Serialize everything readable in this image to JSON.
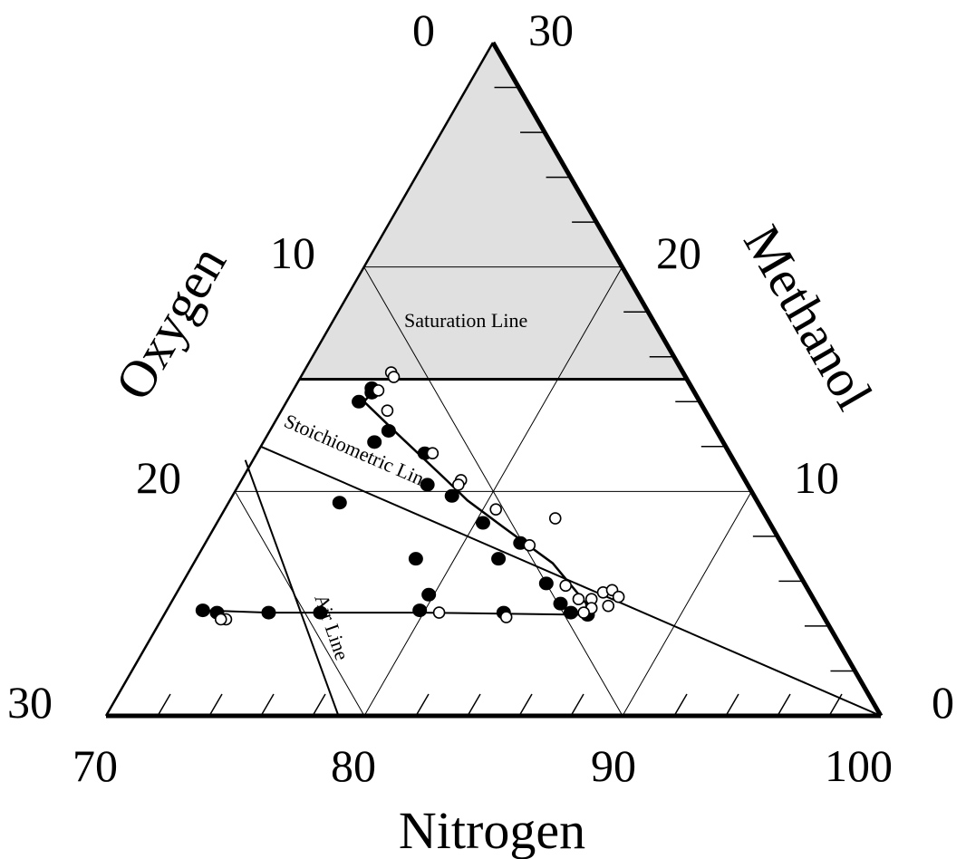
{
  "diagram": {
    "type": "ternary",
    "axes": {
      "oxygen": {
        "title": "Oxygen",
        "range": [
          0,
          30
        ],
        "tick_labels": [
          "0",
          "10",
          "20",
          "30"
        ]
      },
      "methanol": {
        "title": "Methanol",
        "range": [
          0,
          30
        ],
        "tick_labels": [
          "30",
          "20",
          "10",
          "0"
        ]
      },
      "nitrogen": {
        "title": "Nitrogen",
        "range": [
          70,
          100
        ],
        "tick_labels": [
          "70",
          "80",
          "90",
          "100"
        ]
      }
    },
    "line_labels": {
      "saturation": "Saturation Line",
      "stoichiometric": "Stoichiometric Line",
      "air": "Air Line"
    },
    "colors": {
      "shaded_region": "#e0e0e0",
      "lines": "#000000"
    }
  },
  "chart_data": {
    "type": "scatter",
    "coordinates": "ternary (mole %): methanol, oxygen, nitrogen",
    "saturation_methanol": 15,
    "series": [
      {
        "marker": "filled",
        "points": [
          {
            "methanol": 14.6,
            "oxygen": 12.4,
            "nitrogen": 73.0
          },
          {
            "methanol": 14.4,
            "oxygen": 12.5,
            "nitrogen": 73.1
          },
          {
            "methanol": 14.0,
            "oxygen": 13.2,
            "nitrogen": 72.8
          },
          {
            "methanol": 12.7,
            "oxygen": 12.7,
            "nitrogen": 74.6
          },
          {
            "methanol": 12.2,
            "oxygen": 13.5,
            "nitrogen": 74.3
          },
          {
            "methanol": 11.7,
            "oxygen": 11.8,
            "nitrogen": 76.5
          },
          {
            "methanol": 10.3,
            "oxygen": 12.4,
            "nitrogen": 77.3
          },
          {
            "methanol": 9.8,
            "oxygen": 11.7,
            "nitrogen": 78.5
          },
          {
            "methanol": 8.6,
            "oxygen": 11.1,
            "nitrogen": 80.3
          },
          {
            "methanol": 7.0,
            "oxygen": 11.3,
            "nitrogen": 81.7
          },
          {
            "methanol": 7.7,
            "oxygen": 10.1,
            "nitrogen": 82.2
          },
          {
            "methanol": 5.9,
            "oxygen": 10.0,
            "nitrogen": 84.1
          },
          {
            "methanol": 5.0,
            "oxygen": 9.9,
            "nitrogen": 85.1
          },
          {
            "methanol": 4.6,
            "oxygen": 9.7,
            "nitrogen": 85.7
          },
          {
            "methanol": 4.5,
            "oxygen": 9.1,
            "nitrogen": 86.4
          },
          {
            "methanol": 4.7,
            "oxygen": 23.9,
            "nitrogen": 71.4
          },
          {
            "methanol": 4.6,
            "oxygen": 23.4,
            "nitrogen": 72.0
          },
          {
            "methanol": 4.6,
            "oxygen": 21.4,
            "nitrogen": 74.0
          },
          {
            "methanol": 4.6,
            "oxygen": 19.4,
            "nitrogen": 76.0
          },
          {
            "methanol": 4.7,
            "oxygen": 15.5,
            "nitrogen": 79.8
          },
          {
            "methanol": 4.6,
            "oxygen": 12.3,
            "nitrogen": 83.1
          },
          {
            "methanol": 5.4,
            "oxygen": 14.8,
            "nitrogen": 79.8
          },
          {
            "methanol": 7.0,
            "oxygen": 14.5,
            "nitrogen": 78.5
          },
          {
            "methanol": 9.5,
            "oxygen": 16.2,
            "nitrogen": 74.3
          }
        ]
      },
      {
        "marker": "open",
        "points": [
          {
            "methanol": 14.5,
            "oxygen": 12.2,
            "nitrogen": 73.3
          },
          {
            "methanol": 15.3,
            "oxygen": 11.3,
            "nitrogen": 73.4
          },
          {
            "methanol": 15.1,
            "oxygen": 11.3,
            "nitrogen": 73.6
          },
          {
            "methanol": 13.6,
            "oxygen": 12.3,
            "nitrogen": 74.1
          },
          {
            "methanol": 11.7,
            "oxygen": 11.5,
            "nitrogen": 76.8
          },
          {
            "methanol": 10.5,
            "oxygen": 11.0,
            "nitrogen": 78.5
          },
          {
            "methanol": 10.3,
            "oxygen": 11.2,
            "nitrogen": 78.5
          },
          {
            "methanol": 9.2,
            "oxygen": 10.3,
            "nitrogen": 80.5
          },
          {
            "methanol": 8.8,
            "oxygen": 8.2,
            "nitrogen": 83.0
          },
          {
            "methanol": 7.6,
            "oxygen": 9.8,
            "nitrogen": 82.6
          },
          {
            "methanol": 5.8,
            "oxygen": 9.3,
            "nitrogen": 84.9
          },
          {
            "methanol": 5.2,
            "oxygen": 9.1,
            "nitrogen": 85.7
          },
          {
            "methanol": 5.2,
            "oxygen": 8.6,
            "nitrogen": 86.2
          },
          {
            "methanol": 5.5,
            "oxygen": 8.0,
            "nitrogen": 86.5
          },
          {
            "methanol": 5.6,
            "oxygen": 7.6,
            "nitrogen": 86.8
          },
          {
            "methanol": 4.8,
            "oxygen": 8.8,
            "nitrogen": 86.4
          },
          {
            "methanol": 4.9,
            "oxygen": 8.1,
            "nitrogen": 87.0
          },
          {
            "methanol": 5.3,
            "oxygen": 7.5,
            "nitrogen": 87.2
          },
          {
            "methanol": 4.6,
            "oxygen": 9.2,
            "nitrogen": 86.2
          },
          {
            "methanol": 4.6,
            "oxygen": 14.8,
            "nitrogen": 80.6
          },
          {
            "methanol": 4.4,
            "oxygen": 12.3,
            "nitrogen": 83.3
          },
          {
            "methanol": 4.3,
            "oxygen": 23.2,
            "nitrogen": 72.5
          },
          {
            "methanol": 4.3,
            "oxygen": 23.4,
            "nitrogen": 72.3
          }
        ]
      }
    ]
  }
}
